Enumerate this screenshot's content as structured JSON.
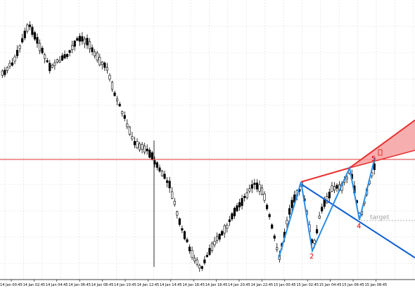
{
  "chart_data": {
    "type": "candlestick",
    "x_tick_labels": [
      "14 Jan 00:45",
      "14 Jan 02:45",
      "14 Jan 04:45",
      "14 Jan 06:45",
      "14 Jan 08:45",
      "14 Jan 10:45",
      "14 Jan 12:45",
      "14 Jan 14:45",
      "14 Jan 16:45",
      "14 Jan 18:45",
      "14 Jan 20:45",
      "14 Jan 22:45",
      "15 Jan 00:45",
      "15 Jan 02:45",
      "15 Jan 04:45",
      "15 Jan 06:45",
      "15 Jan 08:45"
    ],
    "grid": true,
    "colors": {
      "background": "#ffffff",
      "grid": "#dcdcdc",
      "candle": "#000000",
      "horizontal_line": "#e03030",
      "triangle_fill": "#f6a0a0",
      "triangle_edge": "#e83030",
      "wave_line": "#2a8ee6",
      "channel_line": "#1060d0",
      "target_line": "#b0b0b0",
      "wave_label": "#e00000",
      "target_label": "#a0a0a0"
    },
    "wave_labels": [
      "2",
      "4",
      "5"
    ],
    "annotation_label": "target"
  }
}
